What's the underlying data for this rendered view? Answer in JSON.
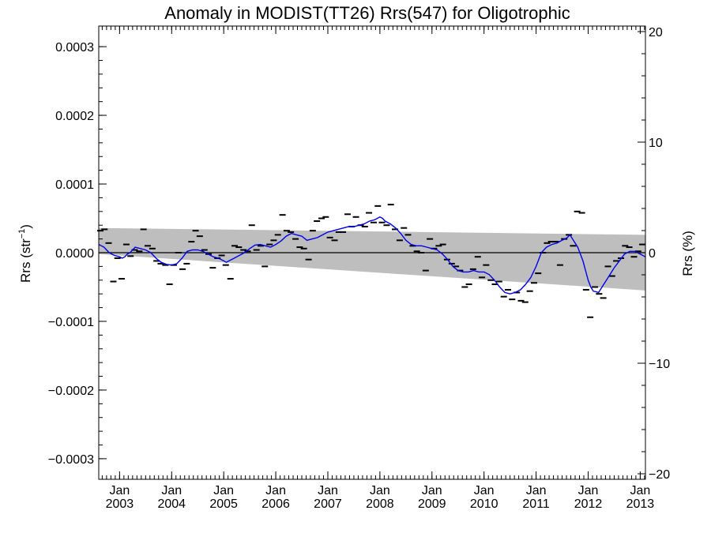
{
  "chart_data": {
    "type": "line",
    "title": "Anomaly in MODIST(TT26) Rrs(547) for Oligotrophic",
    "ylabel_left": "Rrs (str",
    "ylabel_left_sup": "−1",
    "ylabel_left_end": ")",
    "ylabel_right": "Rrs (%)",
    "ylim_left": [
      -0.00033,
      0.00033
    ],
    "ylim_right": [
      -20.5,
      20.5
    ],
    "xlim": [
      2002.6,
      2013.1
    ],
    "yticks_left": [
      {
        "value": 0.0003,
        "label": "0.0003"
      },
      {
        "value": 0.0002,
        "label": "0.0002"
      },
      {
        "value": 0.0001,
        "label": "0.0001"
      },
      {
        "value": 0.0,
        "label": "0.0000"
      },
      {
        "value": -0.0001,
        "label": "−0.0001"
      },
      {
        "value": -0.0002,
        "label": "−0.0002"
      },
      {
        "value": -0.0003,
        "label": "−0.0003"
      }
    ],
    "yticks_right": [
      {
        "value": 20,
        "label": "20"
      },
      {
        "value": 10,
        "label": "10"
      },
      {
        "value": 0,
        "label": "0"
      },
      {
        "value": -10,
        "label": "−10"
      },
      {
        "value": -20,
        "label": "−20"
      }
    ],
    "xticks": [
      {
        "value": 2003.0,
        "month": "Jan",
        "year": "2003"
      },
      {
        "value": 2004.0,
        "month": "Jan",
        "year": "2004"
      },
      {
        "value": 2005.0,
        "month": "Jan",
        "year": "2005"
      },
      {
        "value": 2006.0,
        "month": "Jan",
        "year": "2006"
      },
      {
        "value": 2007.0,
        "month": "Jan",
        "year": "2007"
      },
      {
        "value": 2008.0,
        "month": "Jan",
        "year": "2008"
      },
      {
        "value": 2009.0,
        "month": "Jan",
        "year": "2009"
      },
      {
        "value": 2010.0,
        "month": "Jan",
        "year": "2010"
      },
      {
        "value": 2011.0,
        "month": "Jan",
        "year": "2011"
      },
      {
        "value": 2012.0,
        "month": "Jan",
        "year": "2012"
      },
      {
        "value": 2013.0,
        "month": "Jan",
        "year": "2013"
      }
    ],
    "confidence_band": {
      "upper": [
        [
          2002.6,
          3.6e-05
        ],
        [
          2013.1,
          2.6e-05
        ]
      ],
      "lower": [
        [
          2002.6,
          -2e-06
        ],
        [
          2013.1,
          -5.5e-05
        ]
      ],
      "color": "#bebebe"
    },
    "zero_line": 0,
    "series": [
      {
        "type": "markers",
        "color": "#000000",
        "points": [
          [
            2002.63,
            3.2e-05
          ],
          [
            2002.71,
            3.4e-05
          ],
          [
            2002.79,
            1.4e-05
          ],
          [
            2002.88,
            -4.2e-05
          ],
          [
            2002.96,
            -8e-06
          ],
          [
            2003.04,
            -3.8e-05
          ],
          [
            2003.13,
            1.2e-05
          ],
          [
            2003.21,
            -5e-06
          ],
          [
            2003.29,
            4e-06
          ],
          [
            2003.38,
            2e-06
          ],
          [
            2003.46,
            3.4e-05
          ],
          [
            2003.54,
            1e-05
          ],
          [
            2003.63,
            6e-06
          ],
          [
            2003.71,
            -1.2e-05
          ],
          [
            2003.79,
            -1.6e-05
          ],
          [
            2003.88,
            -1.8e-05
          ],
          [
            2003.96,
            -4.6e-05
          ],
          [
            2004.04,
            -1.8e-05
          ],
          [
            2004.13,
            0.0
          ],
          [
            2004.21,
            -2.4e-05
          ],
          [
            2004.29,
            -1.6e-05
          ],
          [
            2004.38,
            1.6e-05
          ],
          [
            2004.46,
            3.2e-05
          ],
          [
            2004.54,
            2.4e-05
          ],
          [
            2004.63,
            4e-06
          ],
          [
            2004.71,
            -2e-06
          ],
          [
            2004.79,
            -2.2e-05
          ],
          [
            2004.88,
            -8e-06
          ],
          [
            2004.96,
            -4e-06
          ],
          [
            2005.04,
            -1.8e-05
          ],
          [
            2005.13,
            -3.8e-05
          ],
          [
            2005.21,
            1e-05
          ],
          [
            2005.29,
            8e-06
          ],
          [
            2005.38,
            4e-06
          ],
          [
            2005.46,
            2e-06
          ],
          [
            2005.54,
            4e-05
          ],
          [
            2005.63,
            4e-06
          ],
          [
            2005.71,
            1e-05
          ],
          [
            2005.79,
            -2e-05
          ],
          [
            2005.88,
            1.2e-05
          ],
          [
            2005.96,
            1.8e-05
          ],
          [
            2006.04,
            2.6e-05
          ],
          [
            2006.13,
            5.5e-05
          ],
          [
            2006.21,
            3.2e-05
          ],
          [
            2006.29,
            3e-05
          ],
          [
            2006.38,
            2e-05
          ],
          [
            2006.46,
            8e-06
          ],
          [
            2006.54,
            6e-06
          ],
          [
            2006.63,
            -1e-05
          ],
          [
            2006.71,
            3.2e-05
          ],
          [
            2006.79,
            4.6e-05
          ],
          [
            2006.88,
            5e-05
          ],
          [
            2006.96,
            5.2e-05
          ],
          [
            2007.04,
            2.2e-05
          ],
          [
            2007.13,
            1.8e-05
          ],
          [
            2007.21,
            3e-05
          ],
          [
            2007.29,
            3e-05
          ],
          [
            2007.38,
            5.6e-05
          ],
          [
            2007.46,
            3.8e-05
          ],
          [
            2007.54,
            5.2e-05
          ],
          [
            2007.63,
            4e-05
          ],
          [
            2007.71,
            3.8e-05
          ],
          [
            2007.79,
            5.8e-05
          ],
          [
            2007.88,
            4.4e-05
          ],
          [
            2007.96,
            6.8e-05
          ],
          [
            2008.04,
            4.4e-05
          ],
          [
            2008.13,
            4e-05
          ],
          [
            2008.21,
            7e-05
          ],
          [
            2008.29,
            3.4e-05
          ],
          [
            2008.38,
            1.8e-05
          ],
          [
            2008.46,
            3.6e-05
          ],
          [
            2008.54,
            2.6e-05
          ],
          [
            2008.63,
            1e-05
          ],
          [
            2008.71,
            2e-06
          ],
          [
            2008.79,
            0.0
          ],
          [
            2008.88,
            -2.6e-05
          ],
          [
            2008.96,
            2e-05
          ],
          [
            2009.04,
            6e-06
          ],
          [
            2009.13,
            1e-05
          ],
          [
            2009.21,
            1.2e-05
          ],
          [
            2009.29,
            -1e-05
          ],
          [
            2009.38,
            -1.6e-05
          ],
          [
            2009.46,
            -2e-05
          ],
          [
            2009.54,
            -2.6e-05
          ],
          [
            2009.63,
            -5e-05
          ],
          [
            2009.71,
            -4.6e-05
          ],
          [
            2009.79,
            -2.4e-05
          ],
          [
            2009.88,
            -6e-06
          ],
          [
            2009.96,
            -3.6e-05
          ],
          [
            2010.04,
            -1.8e-05
          ],
          [
            2010.13,
            -4e-05
          ],
          [
            2010.21,
            -4.6e-05
          ],
          [
            2010.29,
            -4.2e-05
          ],
          [
            2010.38,
            -6.4e-05
          ],
          [
            2010.46,
            -5.4e-05
          ],
          [
            2010.54,
            -6.8e-05
          ],
          [
            2010.63,
            -5.8e-05
          ],
          [
            2010.71,
            -7e-05
          ],
          [
            2010.79,
            -7.2e-05
          ],
          [
            2010.88,
            -5.6e-05
          ],
          [
            2010.96,
            -4.4e-05
          ],
          [
            2011.04,
            -3e-05
          ],
          [
            2011.13,
            0.0
          ],
          [
            2011.21,
            1.4e-05
          ],
          [
            2011.29,
            1.6e-05
          ],
          [
            2011.38,
            1.6e-05
          ],
          [
            2011.46,
            -1.8e-05
          ],
          [
            2011.54,
            2e-05
          ],
          [
            2011.63,
            2.6e-05
          ],
          [
            2011.71,
            1e-05
          ],
          [
            2011.79,
            6e-05
          ],
          [
            2011.88,
            5.8e-05
          ],
          [
            2011.96,
            -5.4e-05
          ],
          [
            2012.04,
            -9.4e-05
          ],
          [
            2012.13,
            -5e-05
          ],
          [
            2012.21,
            -6e-05
          ],
          [
            2012.29,
            -6.6e-05
          ],
          [
            2012.38,
            -2e-05
          ],
          [
            2012.46,
            -3.4e-05
          ],
          [
            2012.54,
            -1.2e-05
          ],
          [
            2012.63,
            -8e-06
          ],
          [
            2012.71,
            1e-05
          ],
          [
            2012.79,
            8e-06
          ],
          [
            2012.88,
            -6e-06
          ],
          [
            2012.96,
            2e-06
          ],
          [
            2013.04,
            1.2e-05
          ]
        ]
      },
      {
        "type": "line",
        "color": "#0000ee",
        "points": [
          [
            2002.6,
            1.2e-05
          ],
          [
            2002.7,
            8e-06
          ],
          [
            2002.8,
            0.0
          ],
          [
            2002.9,
            -4e-06
          ],
          [
            2003.0,
            -6e-06
          ],
          [
            2003.05,
            -8e-06
          ],
          [
            2003.1,
            -6e-06
          ],
          [
            2003.15,
            -2e-06
          ],
          [
            2003.2,
            0.0
          ],
          [
            2003.3,
            8e-06
          ],
          [
            2003.4,
            6e-06
          ],
          [
            2003.5,
            4e-06
          ],
          [
            2003.6,
            0.0
          ],
          [
            2003.7,
            -8e-06
          ],
          [
            2003.8,
            -1.4e-05
          ],
          [
            2003.9,
            -1.7e-05
          ],
          [
            2004.0,
            -1.8e-05
          ],
          [
            2004.1,
            -1.6e-05
          ],
          [
            2004.2,
            -8e-06
          ],
          [
            2004.3,
            2e-06
          ],
          [
            2004.4,
            4e-06
          ],
          [
            2004.5,
            4e-06
          ],
          [
            2004.6,
            2e-06
          ],
          [
            2004.7,
            -2e-06
          ],
          [
            2004.8,
            -6e-06
          ],
          [
            2004.9,
            -8e-06
          ],
          [
            2005.0,
            -1.2e-05
          ],
          [
            2005.05,
            -1.4e-05
          ],
          [
            2005.1,
            -1.2e-05
          ],
          [
            2005.2,
            -8e-06
          ],
          [
            2005.3,
            -4e-06
          ],
          [
            2005.4,
            0.0
          ],
          [
            2005.5,
            6e-06
          ],
          [
            2005.6,
            1.1e-05
          ],
          [
            2005.7,
            1.2e-05
          ],
          [
            2005.8,
            1e-05
          ],
          [
            2005.9,
            8e-06
          ],
          [
            2006.0,
            1.2e-05
          ],
          [
            2006.1,
            1.7e-05
          ],
          [
            2006.2,
            2.4e-05
          ],
          [
            2006.3,
            2.8e-05
          ],
          [
            2006.4,
            2.6e-05
          ],
          [
            2006.5,
            2.4e-05
          ],
          [
            2006.6,
            1.8e-05
          ],
          [
            2006.7,
            2e-05
          ],
          [
            2006.8,
            2.2e-05
          ],
          [
            2006.9,
            2.6e-05
          ],
          [
            2007.0,
            3e-05
          ],
          [
            2007.1,
            3.2e-05
          ],
          [
            2007.2,
            3.4e-05
          ],
          [
            2007.3,
            3.6e-05
          ],
          [
            2007.4,
            3.8e-05
          ],
          [
            2007.5,
            3.8e-05
          ],
          [
            2007.6,
            4e-05
          ],
          [
            2007.7,
            4.2e-05
          ],
          [
            2007.8,
            4.6e-05
          ],
          [
            2007.9,
            4.8e-05
          ],
          [
            2008.0,
            5.2e-05
          ],
          [
            2008.05,
            5e-05
          ],
          [
            2008.1,
            4.6e-05
          ],
          [
            2008.2,
            4.2e-05
          ],
          [
            2008.3,
            3.6e-05
          ],
          [
            2008.4,
            2.8e-05
          ],
          [
            2008.5,
            1.8e-05
          ],
          [
            2008.6,
            1.2e-05
          ],
          [
            2008.7,
            1e-05
          ],
          [
            2008.8,
            1e-05
          ],
          [
            2008.9,
            8e-06
          ],
          [
            2009.0,
            6e-06
          ],
          [
            2009.1,
            4e-06
          ],
          [
            2009.2,
            -2e-06
          ],
          [
            2009.3,
            -1e-05
          ],
          [
            2009.4,
            -2e-05
          ],
          [
            2009.5,
            -2.6e-05
          ],
          [
            2009.6,
            -2.8e-05
          ],
          [
            2009.7,
            -2.8e-05
          ],
          [
            2009.8,
            -2.6e-05
          ],
          [
            2009.9,
            -2.8e-05
          ],
          [
            2010.0,
            -2.8e-05
          ],
          [
            2010.1,
            -3.2e-05
          ],
          [
            2010.2,
            -4e-05
          ],
          [
            2010.3,
            -5e-05
          ],
          [
            2010.4,
            -5.8e-05
          ],
          [
            2010.5,
            -6e-05
          ],
          [
            2010.6,
            -5.8e-05
          ],
          [
            2010.7,
            -5.4e-05
          ],
          [
            2010.8,
            -4.6e-05
          ],
          [
            2010.9,
            -3.6e-05
          ],
          [
            2011.0,
            -2e-05
          ],
          [
            2011.05,
            -1e-05
          ],
          [
            2011.1,
            0.0
          ],
          [
            2011.2,
            8e-06
          ],
          [
            2011.3,
            1.2e-05
          ],
          [
            2011.4,
            1.4e-05
          ],
          [
            2011.5,
            1.8e-05
          ],
          [
            2011.6,
            2.2e-05
          ],
          [
            2011.65,
            2.6e-05
          ],
          [
            2011.7,
            2e-05
          ],
          [
            2011.8,
            8e-06
          ],
          [
            2011.9,
            -1.2e-05
          ],
          [
            2012.0,
            -4e-05
          ],
          [
            2012.05,
            -5e-05
          ],
          [
            2012.1,
            -5.6e-05
          ],
          [
            2012.2,
            -5.8e-05
          ],
          [
            2012.3,
            -4.6e-05
          ],
          [
            2012.4,
            -3.4e-05
          ],
          [
            2012.5,
            -2.2e-05
          ],
          [
            2012.6,
            -1.2e-05
          ],
          [
            2012.7,
            -2e-06
          ],
          [
            2012.8,
            2e-06
          ],
          [
            2012.9,
            2e-06
          ],
          [
            2013.0,
            -2e-06
          ],
          [
            2013.1,
            -6e-06
          ]
        ]
      }
    ],
    "grid": false
  }
}
